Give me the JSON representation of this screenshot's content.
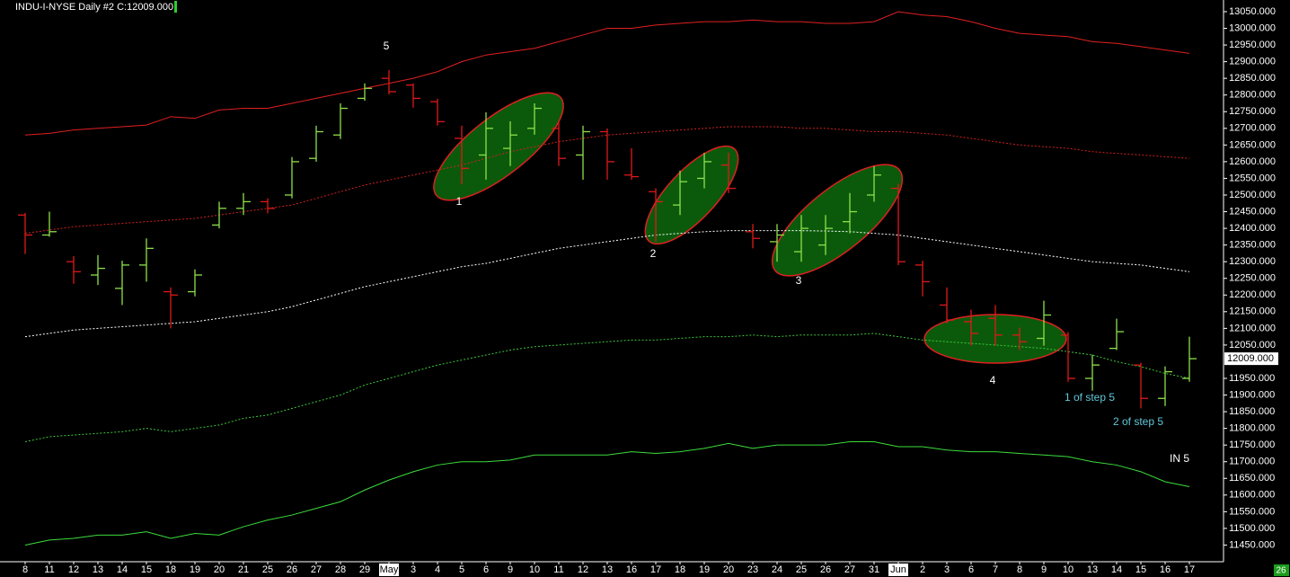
{
  "chart_data": {
    "type": "ohlc",
    "title": "INDU-I-NYSE Daily  #2 C:12009.000",
    "corner_label": "26",
    "last_price": {
      "value": 12009,
      "label": "12009.000"
    },
    "up_color": "#8ee04a",
    "down_color": "#e01818",
    "categories": [
      "8",
      "11",
      "12",
      "13",
      "14",
      "15",
      "18",
      "19",
      "20",
      "21",
      "25",
      "26",
      "27",
      "28",
      "29",
      "May",
      "3",
      "4",
      "5",
      "6",
      "9",
      "10",
      "11",
      "12",
      "13",
      "16",
      "17",
      "18",
      "19",
      "20",
      "23",
      "24",
      "25",
      "26",
      "27",
      "31",
      "Jun",
      "2",
      "3",
      "6",
      "7",
      "8",
      "9",
      "10",
      "13",
      "14",
      "15",
      "16",
      "17"
    ],
    "open": [
      12440,
      12380,
      12300,
      12260,
      12220,
      12290,
      12210,
      12210,
      12410,
      12460,
      12480,
      12500,
      12610,
      12680,
      12790,
      12850,
      12830,
      12780,
      12670,
      12620,
      12640,
      12700,
      12700,
      12620,
      12690,
      12560,
      12510,
      12470,
      12550,
      12590,
      12390,
      12360,
      12330,
      12350,
      12420,
      12500,
      12520,
      12290,
      12170,
      12120,
      12130,
      12080,
      12070,
      12080,
      11950,
      12040,
      11990,
      11890,
      11950
    ],
    "high": [
      12446,
      12450,
      12317,
      12320,
      12303,
      12370,
      12223,
      12277,
      12480,
      12506,
      12490,
      12614,
      12708,
      12775,
      12835,
      12875,
      12835,
      12789,
      12708,
      12748,
      12721,
      12775,
      12721,
      12708,
      12700,
      12640,
      12520,
      12573,
      12627,
      12627,
      12413,
      12413,
      12440,
      12440,
      12506,
      12587,
      12533,
      12303,
      12223,
      12156,
      12170,
      12102,
      12183,
      12089,
      12021,
      12129,
      11997,
      11986,
      12075
    ],
    "low": [
      12323,
      12375,
      12234,
      12230,
      12170,
      12240,
      12100,
      12196,
      12400,
      12440,
      12445,
      12490,
      12600,
      12668,
      12783,
      12802,
      12762,
      12708,
      12532,
      12546,
      12587,
      12681,
      12587,
      12546,
      12546,
      12546,
      12360,
      12440,
      12520,
      12506,
      12340,
      12300,
      12300,
      12320,
      12385,
      12480,
      12290,
      12196,
      12115,
      12048,
      12048,
      12035,
      12048,
      11940,
      11913,
      12035,
      11860,
      11867,
      11940
    ],
    "close": [
      12380,
      12390,
      12270,
      12280,
      12290,
      12340,
      12200,
      12260,
      12460,
      12480,
      12460,
      12600,
      12690,
      12760,
      12820,
      12810,
      12790,
      12720,
      12580,
      12700,
      12680,
      12760,
      12610,
      12690,
      12600,
      12555,
      12480,
      12540,
      12600,
      12520,
      12370,
      12380,
      12400,
      12400,
      12450,
      12560,
      12300,
      12240,
      12125,
      12085,
      12080,
      12060,
      12140,
      11950,
      11990,
      12090,
      11890,
      11970,
      12009
    ],
    "bands": [
      {
        "color": "#e02020",
        "dashed": false,
        "values": [
          12680,
          12685,
          12695,
          12700,
          12705,
          12710,
          12735,
          12730,
          12755,
          12760,
          12760,
          12775,
          12790,
          12805,
          12820,
          12835,
          12850,
          12870,
          12900,
          12920,
          12930,
          12940,
          12960,
          12980,
          13000,
          13000,
          13010,
          13015,
          13020,
          13020,
          13025,
          13020,
          13020,
          13015,
          13015,
          13020,
          13050,
          13040,
          13035,
          13020,
          13000,
          12985,
          12980,
          12975,
          12960,
          12955,
          12945,
          12935,
          12925
        ]
      },
      {
        "color": "#d02020",
        "dashed": true,
        "values": [
          12385,
          12395,
          12405,
          12410,
          12415,
          12420,
          12425,
          12430,
          12440,
          12450,
          12460,
          12470,
          12490,
          12510,
          12530,
          12545,
          12560,
          12575,
          12590,
          12610,
          12630,
          12645,
          12660,
          12670,
          12680,
          12685,
          12690,
          12695,
          12700,
          12705,
          12705,
          12705,
          12700,
          12700,
          12695,
          12690,
          12690,
          12685,
          12680,
          12670,
          12660,
          12650,
          12645,
          12640,
          12630,
          12625,
          12620,
          12615,
          12610
        ]
      },
      {
        "color": "#ffffff",
        "dashed": true,
        "values": [
          12075,
          12085,
          12095,
          12100,
          12105,
          12110,
          12115,
          12120,
          12130,
          12140,
          12150,
          12165,
          12185,
          12205,
          12225,
          12240,
          12255,
          12270,
          12285,
          12295,
          12310,
          12325,
          12340,
          12350,
          12360,
          12370,
          12380,
          12385,
          12390,
          12393,
          12393,
          12393,
          12393,
          12392,
          12390,
          12385,
          12380,
          12370,
          12360,
          12350,
          12340,
          12330,
          12320,
          12310,
          12300,
          12295,
          12290,
          12280,
          12270
        ]
      },
      {
        "color": "#3cc83c",
        "dashed": true,
        "values": [
          11760,
          11775,
          11780,
          11785,
          11790,
          11800,
          11790,
          11800,
          11810,
          11830,
          11840,
          11860,
          11880,
          11900,
          11930,
          11950,
          11970,
          11990,
          12005,
          12020,
          12035,
          12045,
          12050,
          12055,
          12060,
          12065,
          12065,
          12070,
          12075,
          12075,
          12080,
          12075,
          12080,
          12080,
          12080,
          12085,
          12075,
          12065,
          12060,
          12055,
          12050,
          12045,
          12040,
          12030,
          12020,
          12000,
          11985,
          11965,
          11950
        ]
      },
      {
        "color": "#3cdc3c",
        "dashed": false,
        "values": [
          11450,
          11465,
          11470,
          11480,
          11480,
          11490,
          11470,
          11485,
          11480,
          11505,
          11525,
          11540,
          11560,
          11580,
          11615,
          11645,
          11670,
          11690,
          11700,
          11700,
          11705,
          11720,
          11720,
          11720,
          11720,
          11730,
          11725,
          11730,
          11740,
          11755,
          11740,
          11750,
          11750,
          11750,
          11760,
          11760,
          11745,
          11745,
          11735,
          11730,
          11730,
          11725,
          11720,
          11715,
          11700,
          11690,
          11670,
          11640,
          11625
        ]
      }
    ],
    "annotations": [
      "5",
      "1",
      "2",
      "3",
      "4",
      "1 of step 5",
      "2 of step 5",
      "IN 5"
    ],
    "ylim": [
      11400,
      13085
    ],
    "yticks": [
      {
        "value": 11450,
        "label": "11450.000"
      },
      {
        "value": 11500,
        "label": "11500.000"
      },
      {
        "value": 11550,
        "label": "11550.000"
      },
      {
        "value": 11600,
        "label": "11600.000"
      },
      {
        "value": 11650,
        "label": "11650.000"
      },
      {
        "value": 11700,
        "label": "11700.000"
      },
      {
        "value": 11750,
        "label": "11750.000"
      },
      {
        "value": 11800,
        "label": "11800.000"
      },
      {
        "value": 11850,
        "label": "11850.000"
      },
      {
        "value": 11900,
        "label": "11900.000"
      },
      {
        "value": 11950,
        "label": "11950.000"
      },
      {
        "value": 12050,
        "label": "12050.000"
      },
      {
        "value": 12100,
        "label": "12100.000"
      },
      {
        "value": 12150,
        "label": "12150.000"
      },
      {
        "value": 12200,
        "label": "12200.000"
      },
      {
        "value": 12250,
        "label": "12250.000"
      },
      {
        "value": 12300,
        "label": "12300.000"
      },
      {
        "value": 12350,
        "label": "12350.000"
      },
      {
        "value": 12400,
        "label": "12400.000"
      },
      {
        "value": 12450,
        "label": "12450.000"
      },
      {
        "value": 12500,
        "label": "12500.000"
      },
      {
        "value": 12550,
        "label": "12550.000"
      },
      {
        "value": 12600,
        "label": "12600.000"
      },
      {
        "value": 12650,
        "label": "12650.000"
      },
      {
        "value": 12700,
        "label": "12700.000"
      },
      {
        "value": 12750,
        "label": "12750.000"
      },
      {
        "value": 12800,
        "label": "12800.000"
      },
      {
        "value": 12850,
        "label": "12850.000"
      },
      {
        "value": 12900,
        "label": "12900.000"
      },
      {
        "value": 12950,
        "label": "12950.000"
      },
      {
        "value": 13000,
        "label": "13000.000"
      },
      {
        "value": 13050,
        "label": "13050.000"
      }
    ]
  }
}
